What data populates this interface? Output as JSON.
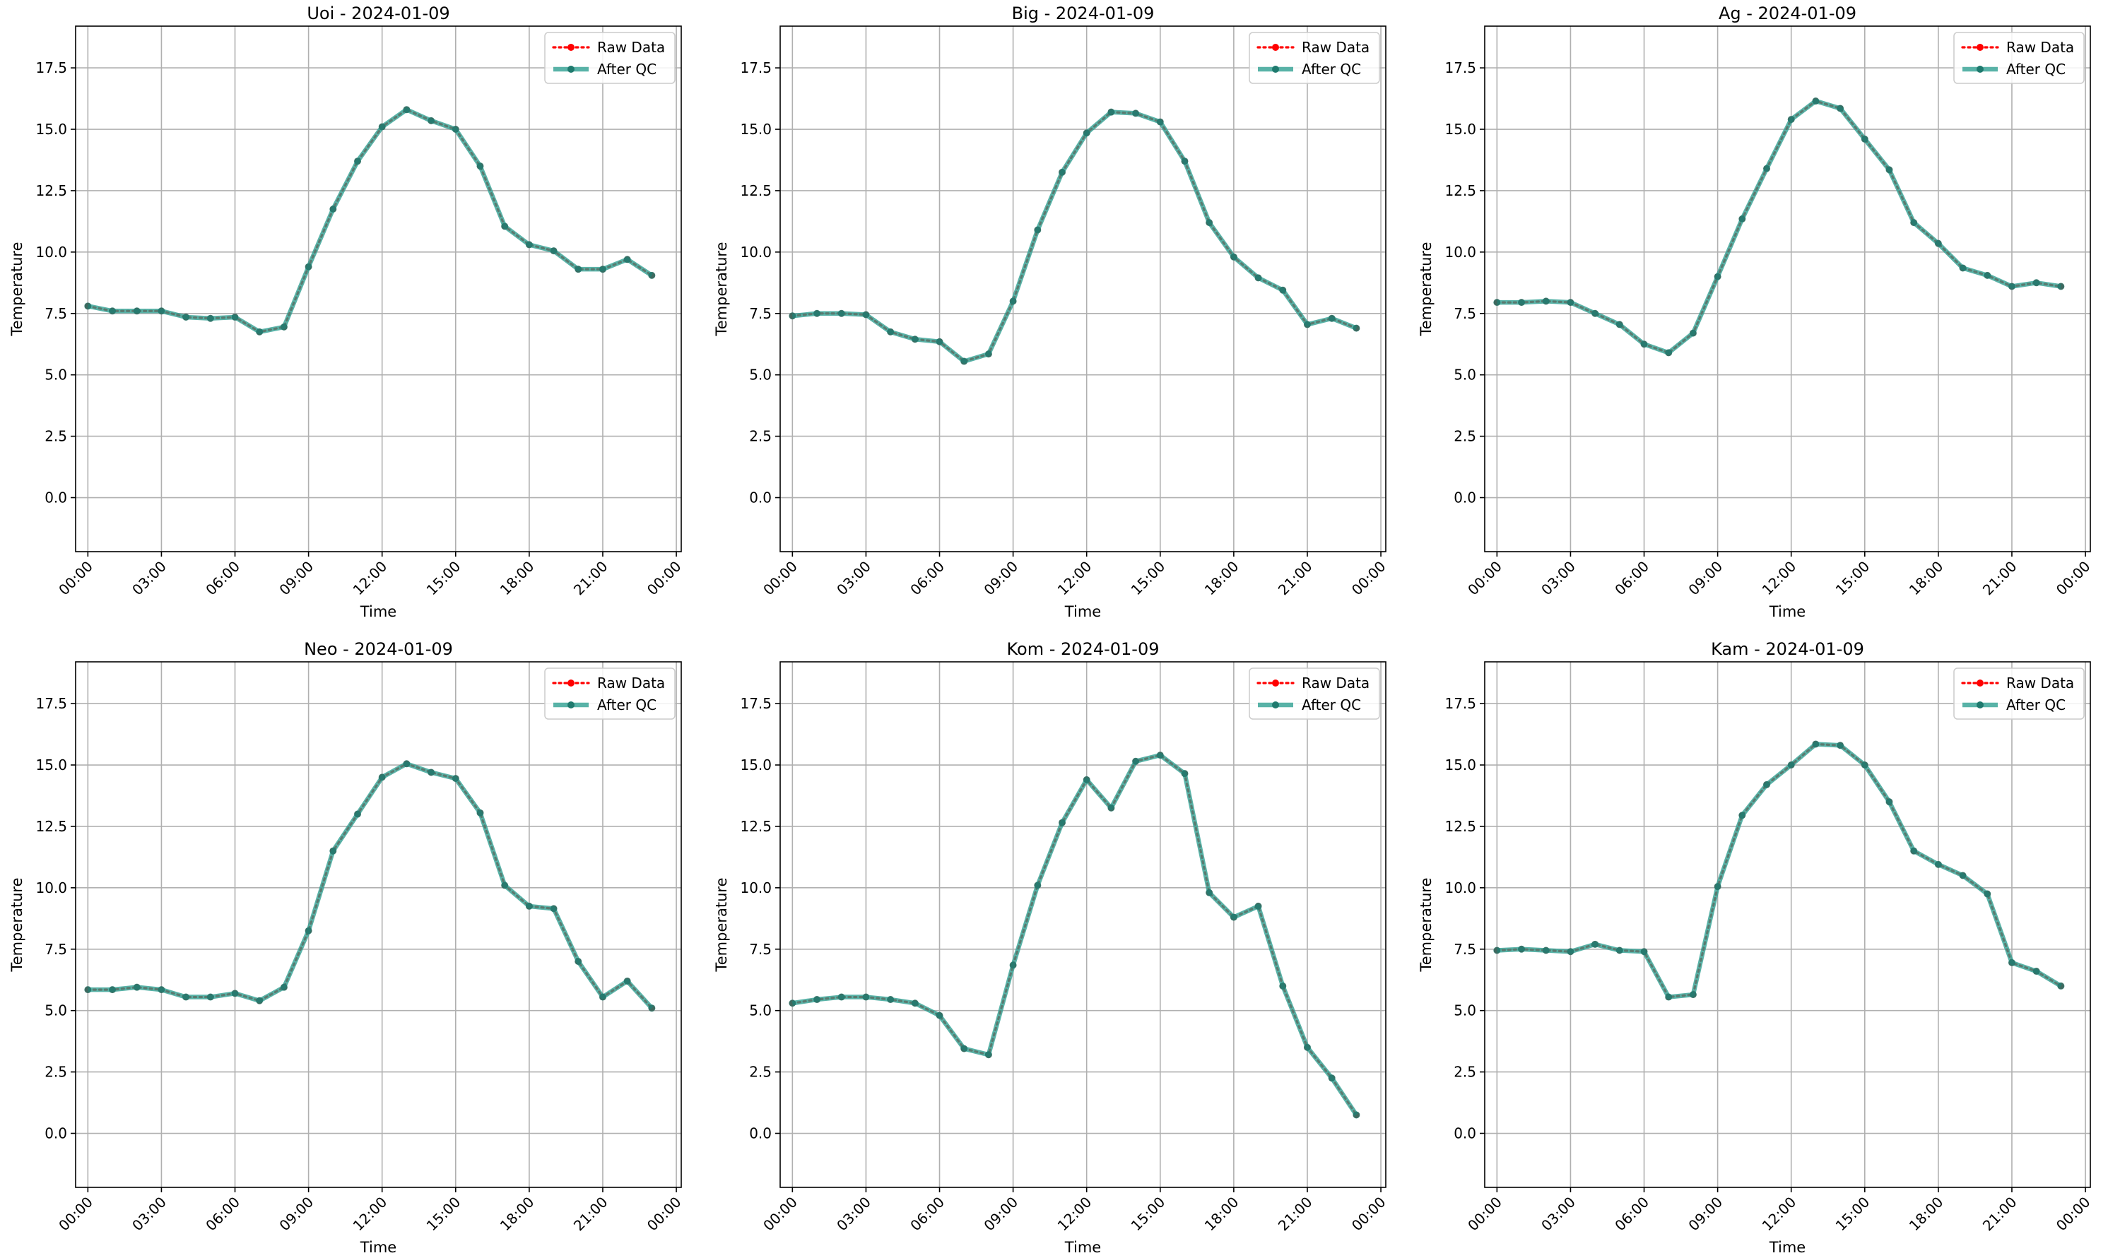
{
  "legend": {
    "raw_label": "Raw Data",
    "qc_label": "After QC"
  },
  "colors": {
    "raw": "#ff0000",
    "qc": "#2a9d8f",
    "qc_marker": "#1f7a6e",
    "grid": "#b0b0b0",
    "axis": "#000000"
  },
  "chart_data": [
    {
      "type": "line",
      "title": "Uoi - 2024-01-09",
      "xlabel": "Time",
      "ylabel": "Temperature",
      "x_ticks": [
        "00:00",
        "03:00",
        "06:00",
        "09:00",
        "12:00",
        "15:00",
        "18:00",
        "21:00",
        "00:00"
      ],
      "y_ticks": [
        "0.0",
        "2.5",
        "5.0",
        "7.5",
        "10.0",
        "12.5",
        "15.0",
        "17.5"
      ],
      "ylim": [
        -2.2,
        19.2
      ],
      "xlim_hours": [
        -0.5,
        24.2
      ],
      "grid": true,
      "legend_position": "upper right",
      "x_hours": [
        0,
        1,
        2,
        3,
        4,
        5,
        6,
        7,
        8,
        9,
        10,
        11,
        12,
        13,
        14,
        15,
        16,
        17,
        18,
        19,
        20,
        21,
        22,
        23
      ],
      "series": [
        {
          "name": "Raw Data",
          "values": [
            7.8,
            7.6,
            7.6,
            7.6,
            7.35,
            7.3,
            7.35,
            6.75,
            6.95,
            9.4,
            11.75,
            13.7,
            15.1,
            15.8,
            15.35,
            15.0,
            13.5,
            11.05,
            10.3,
            10.05,
            9.3,
            9.3,
            9.7,
            9.05
          ]
        },
        {
          "name": "After QC",
          "values": [
            7.8,
            7.6,
            7.6,
            7.6,
            7.35,
            7.3,
            7.35,
            6.75,
            6.95,
            9.4,
            11.75,
            13.7,
            15.1,
            15.8,
            15.35,
            15.0,
            13.5,
            11.05,
            10.3,
            10.05,
            9.3,
            9.3,
            9.7,
            9.05
          ]
        }
      ]
    },
    {
      "type": "line",
      "title": "Big - 2024-01-09",
      "xlabel": "Time",
      "ylabel": "Temperature",
      "x_ticks": [
        "00:00",
        "03:00",
        "06:00",
        "09:00",
        "12:00",
        "15:00",
        "18:00",
        "21:00",
        "00:00"
      ],
      "y_ticks": [
        "0.0",
        "2.5",
        "5.0",
        "7.5",
        "10.0",
        "12.5",
        "15.0",
        "17.5"
      ],
      "ylim": [
        -2.2,
        19.2
      ],
      "xlim_hours": [
        -0.5,
        24.2
      ],
      "grid": true,
      "legend_position": "upper right",
      "x_hours": [
        0,
        1,
        2,
        3,
        4,
        5,
        6,
        7,
        8,
        9,
        10,
        11,
        12,
        13,
        14,
        15,
        16,
        17,
        18,
        19,
        20,
        21,
        22,
        23
      ],
      "series": [
        {
          "name": "Raw Data",
          "values": [
            7.4,
            7.5,
            7.5,
            7.45,
            6.75,
            6.45,
            6.35,
            5.55,
            5.85,
            8.0,
            10.9,
            13.25,
            14.85,
            15.7,
            15.65,
            15.3,
            13.7,
            11.2,
            9.8,
            8.95,
            8.45,
            7.05,
            7.3,
            6.9
          ]
        },
        {
          "name": "After QC",
          "values": [
            7.4,
            7.5,
            7.5,
            7.45,
            6.75,
            6.45,
            6.35,
            5.55,
            5.85,
            8.0,
            10.9,
            13.25,
            14.85,
            15.7,
            15.65,
            15.3,
            13.7,
            11.2,
            9.8,
            8.95,
            8.45,
            7.05,
            7.3,
            6.9
          ]
        }
      ]
    },
    {
      "type": "line",
      "title": "Ag - 2024-01-09",
      "xlabel": "Time",
      "ylabel": "Temperature",
      "x_ticks": [
        "00:00",
        "03:00",
        "06:00",
        "09:00",
        "12:00",
        "15:00",
        "18:00",
        "21:00",
        "00:00"
      ],
      "y_ticks": [
        "0.0",
        "2.5",
        "5.0",
        "7.5",
        "10.0",
        "12.5",
        "15.0",
        "17.5"
      ],
      "ylim": [
        -2.2,
        19.2
      ],
      "xlim_hours": [
        -0.5,
        24.2
      ],
      "grid": true,
      "legend_position": "upper right",
      "x_hours": [
        0,
        1,
        2,
        3,
        4,
        5,
        6,
        7,
        8,
        9,
        10,
        11,
        12,
        13,
        14,
        15,
        16,
        17,
        18,
        19,
        20,
        21,
        22,
        23
      ],
      "series": [
        {
          "name": "Raw Data",
          "values": [
            7.95,
            7.95,
            8.0,
            7.95,
            7.5,
            7.05,
            6.25,
            5.9,
            6.7,
            9.0,
            11.35,
            13.4,
            15.4,
            16.15,
            15.85,
            14.6,
            13.35,
            11.2,
            10.35,
            9.35,
            9.05,
            8.6,
            8.75,
            8.6
          ]
        },
        {
          "name": "After QC",
          "values": [
            7.95,
            7.95,
            8.0,
            7.95,
            7.5,
            7.05,
            6.25,
            5.9,
            6.7,
            9.0,
            11.35,
            13.4,
            15.4,
            16.15,
            15.85,
            14.6,
            13.35,
            11.2,
            10.35,
            9.35,
            9.05,
            8.6,
            8.75,
            8.6
          ]
        }
      ]
    },
    {
      "type": "line",
      "title": "Neo - 2024-01-09",
      "xlabel": "Time",
      "ylabel": "Temperature",
      "x_ticks": [
        "00:00",
        "03:00",
        "06:00",
        "09:00",
        "12:00",
        "15:00",
        "18:00",
        "21:00",
        "00:00"
      ],
      "y_ticks": [
        "0.0",
        "2.5",
        "5.0",
        "7.5",
        "10.0",
        "12.5",
        "15.0",
        "17.5"
      ],
      "ylim": [
        -2.2,
        19.2
      ],
      "xlim_hours": [
        -0.5,
        24.2
      ],
      "grid": true,
      "legend_position": "upper right",
      "x_hours": [
        0,
        1,
        2,
        3,
        4,
        5,
        6,
        7,
        8,
        9,
        10,
        11,
        12,
        13,
        14,
        15,
        16,
        17,
        18,
        19,
        20,
        21,
        22,
        23
      ],
      "series": [
        {
          "name": "Raw Data",
          "values": [
            5.85,
            5.85,
            5.95,
            5.85,
            5.55,
            5.55,
            5.7,
            5.4,
            5.95,
            8.25,
            11.5,
            13.0,
            14.5,
            15.05,
            14.7,
            14.45,
            13.05,
            10.1,
            9.25,
            9.15,
            7.0,
            5.55,
            6.2,
            5.1
          ]
        },
        {
          "name": "After QC",
          "values": [
            5.85,
            5.85,
            5.95,
            5.85,
            5.55,
            5.55,
            5.7,
            5.4,
            5.95,
            8.25,
            11.5,
            13.0,
            14.5,
            15.05,
            14.7,
            14.45,
            13.05,
            10.1,
            9.25,
            9.15,
            7.0,
            5.55,
            6.2,
            5.1
          ]
        }
      ]
    },
    {
      "type": "line",
      "title": "Kom - 2024-01-09",
      "xlabel": "Time",
      "ylabel": "Temperature",
      "x_ticks": [
        "00:00",
        "03:00",
        "06:00",
        "09:00",
        "12:00",
        "15:00",
        "18:00",
        "21:00",
        "00:00"
      ],
      "y_ticks": [
        "0.0",
        "2.5",
        "5.0",
        "7.5",
        "10.0",
        "12.5",
        "15.0",
        "17.5"
      ],
      "ylim": [
        -2.2,
        19.2
      ],
      "xlim_hours": [
        -0.5,
        24.2
      ],
      "grid": true,
      "legend_position": "upper right",
      "x_hours": [
        0,
        1,
        2,
        3,
        4,
        5,
        6,
        7,
        8,
        9,
        10,
        11,
        12,
        13,
        14,
        15,
        16,
        17,
        18,
        19,
        20,
        21,
        22,
        23
      ],
      "series": [
        {
          "name": "Raw Data",
          "values": [
            5.3,
            5.45,
            5.55,
            5.55,
            5.45,
            5.3,
            4.8,
            3.45,
            3.2,
            6.85,
            10.1,
            12.65,
            14.4,
            13.25,
            15.15,
            15.4,
            14.65,
            9.8,
            8.8,
            9.25,
            6.0,
            3.5,
            2.25,
            0.75
          ]
        },
        {
          "name": "After QC",
          "values": [
            5.3,
            5.45,
            5.55,
            5.55,
            5.45,
            5.3,
            4.8,
            3.45,
            3.2,
            6.85,
            10.1,
            12.65,
            14.4,
            13.25,
            15.15,
            15.4,
            14.65,
            9.8,
            8.8,
            9.25,
            6.0,
            3.5,
            2.25,
            0.75
          ]
        }
      ]
    },
    {
      "type": "line",
      "title": "Kam - 2024-01-09",
      "xlabel": "Time",
      "ylabel": "Temperature",
      "x_ticks": [
        "00:00",
        "03:00",
        "06:00",
        "09:00",
        "12:00",
        "15:00",
        "18:00",
        "21:00",
        "00:00"
      ],
      "y_ticks": [
        "0.0",
        "2.5",
        "5.0",
        "7.5",
        "10.0",
        "12.5",
        "15.0",
        "17.5"
      ],
      "ylim": [
        -2.2,
        19.2
      ],
      "xlim_hours": [
        -0.5,
        24.2
      ],
      "grid": true,
      "legend_position": "upper right",
      "x_hours": [
        0,
        1,
        2,
        3,
        4,
        5,
        6,
        7,
        8,
        9,
        10,
        11,
        12,
        13,
        14,
        15,
        16,
        17,
        18,
        19,
        20,
        21,
        22,
        23
      ],
      "series": [
        {
          "name": "Raw Data",
          "values": [
            7.45,
            7.5,
            7.45,
            7.4,
            7.7,
            7.45,
            7.4,
            5.55,
            5.65,
            10.05,
            12.95,
            14.2,
            15.0,
            15.85,
            15.8,
            15.0,
            13.5,
            11.5,
            10.95,
            10.5,
            9.75,
            6.95,
            6.6,
            6.0
          ]
        },
        {
          "name": "After QC",
          "values": [
            7.45,
            7.5,
            7.45,
            7.4,
            7.7,
            7.45,
            7.4,
            5.55,
            5.65,
            10.05,
            12.95,
            14.2,
            15.0,
            15.85,
            15.8,
            15.0,
            13.5,
            11.5,
            10.95,
            10.5,
            9.75,
            6.95,
            6.6,
            6.0
          ]
        }
      ]
    }
  ]
}
